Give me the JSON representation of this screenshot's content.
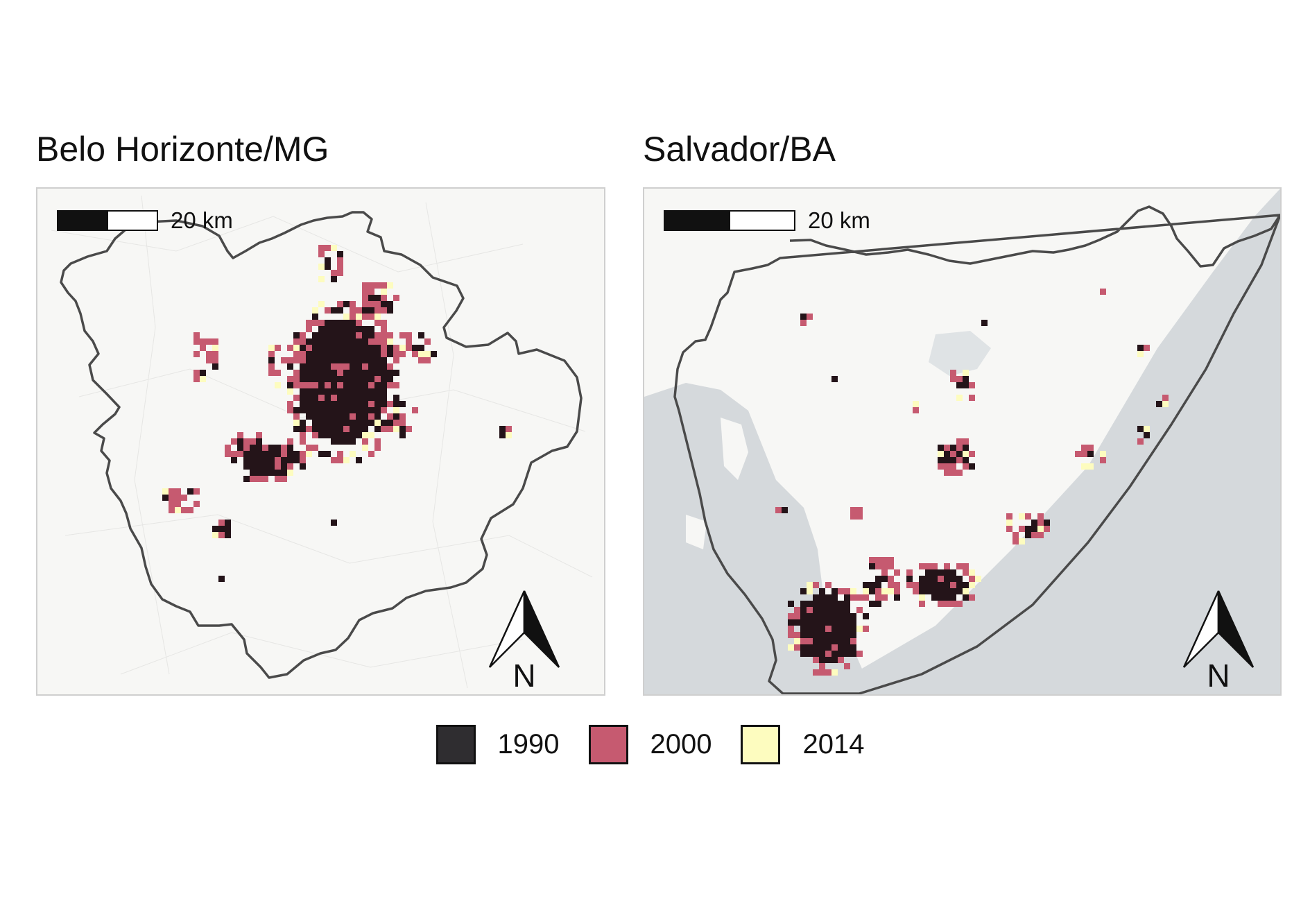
{
  "panels": [
    {
      "title": "Belo Horizonte/MG",
      "scale_label": "20 km",
      "north_label": "N"
    },
    {
      "title": "Salvador/BA",
      "scale_label": "20 km",
      "north_label": "N"
    }
  ],
  "legend": [
    {
      "label": "1990",
      "color": "#2f2d30"
    },
    {
      "label": "2000",
      "color": "#c65a70"
    },
    {
      "label": "2014",
      "color": "#fdfcbf"
    }
  ],
  "colors": {
    "urban_1990": "#241419",
    "urban_2000": "#c65a70",
    "urban_2014": "#fdfcbf",
    "boundary": "#4a4a4a",
    "land": "#f7f7f5",
    "water": "#d5d9dc"
  }
}
